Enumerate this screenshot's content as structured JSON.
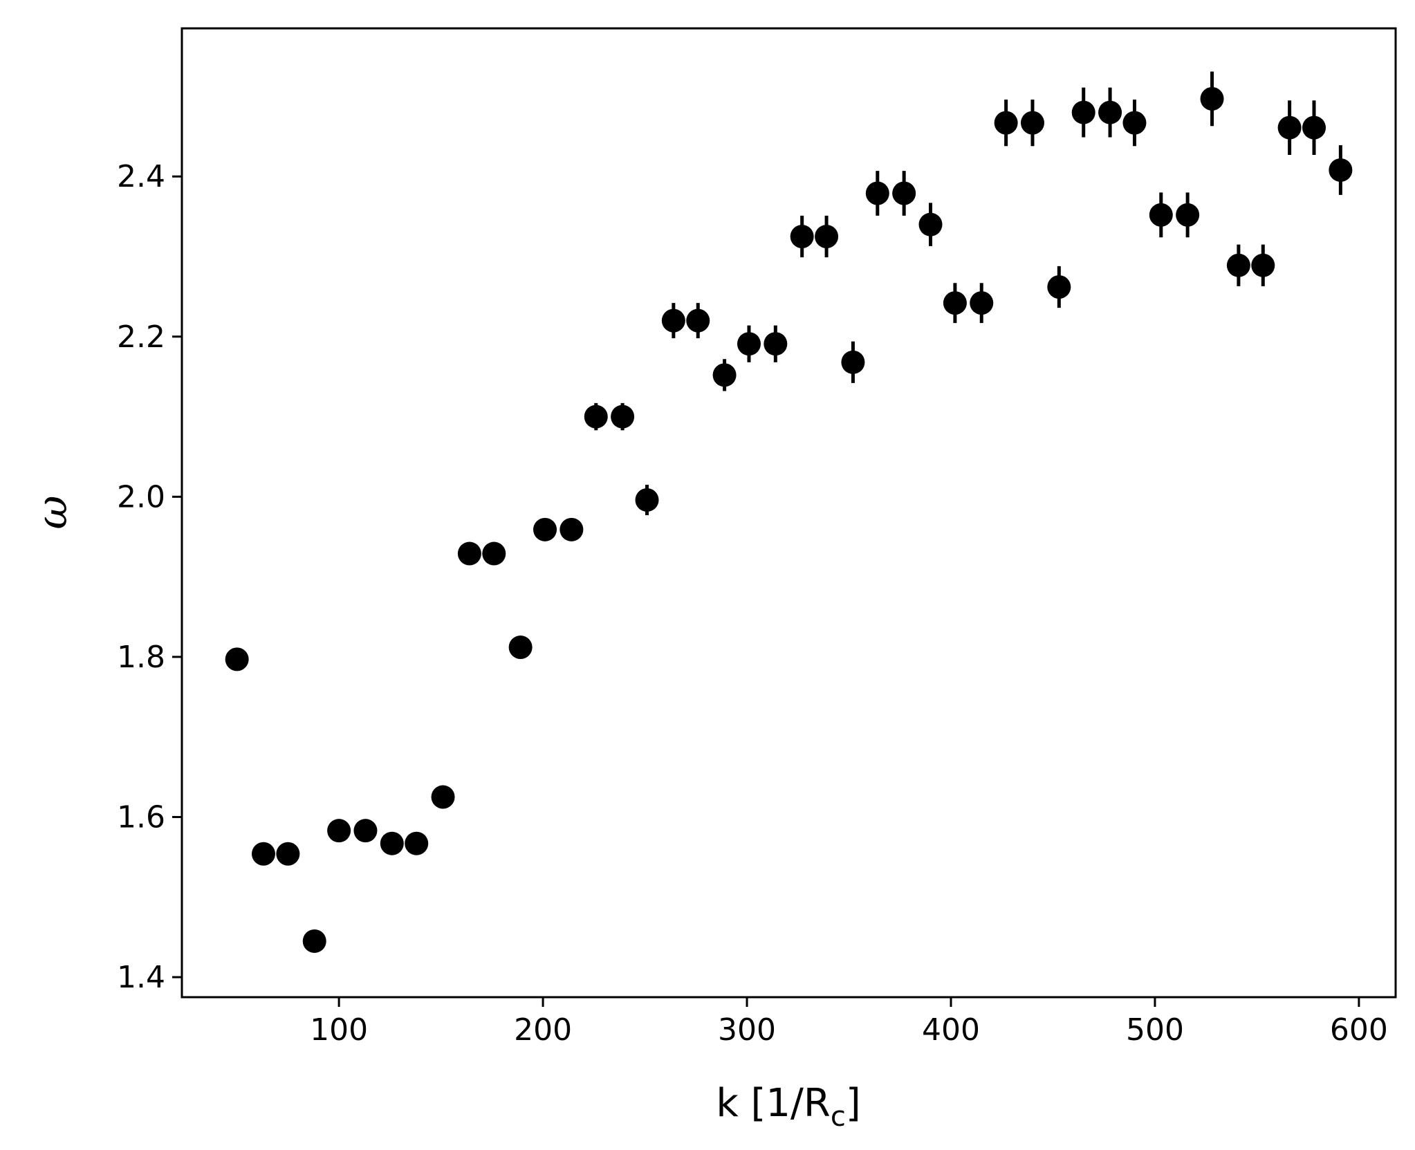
{
  "chart_data": {
    "type": "scatter",
    "title": "",
    "xlabel": "k [1/R",
    "xlabel_sub": "c",
    "xlabel_close": "]",
    "ylabel": "ω",
    "xlim": [
      23,
      618
    ],
    "ylim": [
      1.375,
      2.585
    ],
    "xticks": [
      100,
      200,
      300,
      400,
      500,
      600
    ],
    "xtick_labels": [
      "100",
      "200",
      "300",
      "400",
      "500",
      "600"
    ],
    "yticks": [
      1.4,
      1.6,
      1.8,
      2.0,
      2.2,
      2.4
    ],
    "ytick_labels": [
      "1.4",
      "1.6",
      "1.8",
      "2.0",
      "2.2",
      "2.4"
    ],
    "grid": false,
    "legend": "none",
    "marker_color": "#000000",
    "series": [
      {
        "x": [
          50,
          63,
          75,
          88,
          100,
          113,
          126,
          138,
          151,
          164,
          176,
          189,
          201,
          214,
          226,
          239,
          251,
          264,
          276,
          289,
          301,
          314,
          327,
          339,
          352,
          364,
          377,
          390,
          402,
          415,
          427,
          440,
          453,
          465,
          478,
          490,
          503,
          516,
          528,
          541,
          553,
          566,
          578,
          591
        ],
        "y": [
          1.797,
          1.554,
          1.554,
          1.445,
          1.583,
          1.583,
          1.567,
          1.567,
          1.625,
          1.929,
          1.929,
          1.812,
          1.959,
          1.959,
          2.1,
          2.1,
          1.996,
          2.22,
          2.22,
          2.152,
          2.191,
          2.191,
          2.325,
          2.325,
          2.168,
          2.379,
          2.379,
          2.34,
          2.242,
          2.242,
          2.467,
          2.467,
          2.262,
          2.48,
          2.48,
          2.467,
          2.352,
          2.352,
          2.497,
          2.289,
          2.289,
          2.461,
          2.461,
          2.408
        ],
        "yerr": [
          0.004,
          0.005,
          0.005,
          0.006,
          0.007,
          0.007,
          0.008,
          0.008,
          0.01,
          0.01,
          0.01,
          0.012,
          0.013,
          0.013,
          0.017,
          0.017,
          0.019,
          0.022,
          0.022,
          0.02,
          0.023,
          0.023,
          0.026,
          0.026,
          0.026,
          0.028,
          0.028,
          0.027,
          0.025,
          0.025,
          0.029,
          0.029,
          0.026,
          0.031,
          0.031,
          0.029,
          0.028,
          0.028,
          0.034,
          0.026,
          0.026,
          0.034,
          0.034,
          0.031
        ]
      }
    ]
  }
}
